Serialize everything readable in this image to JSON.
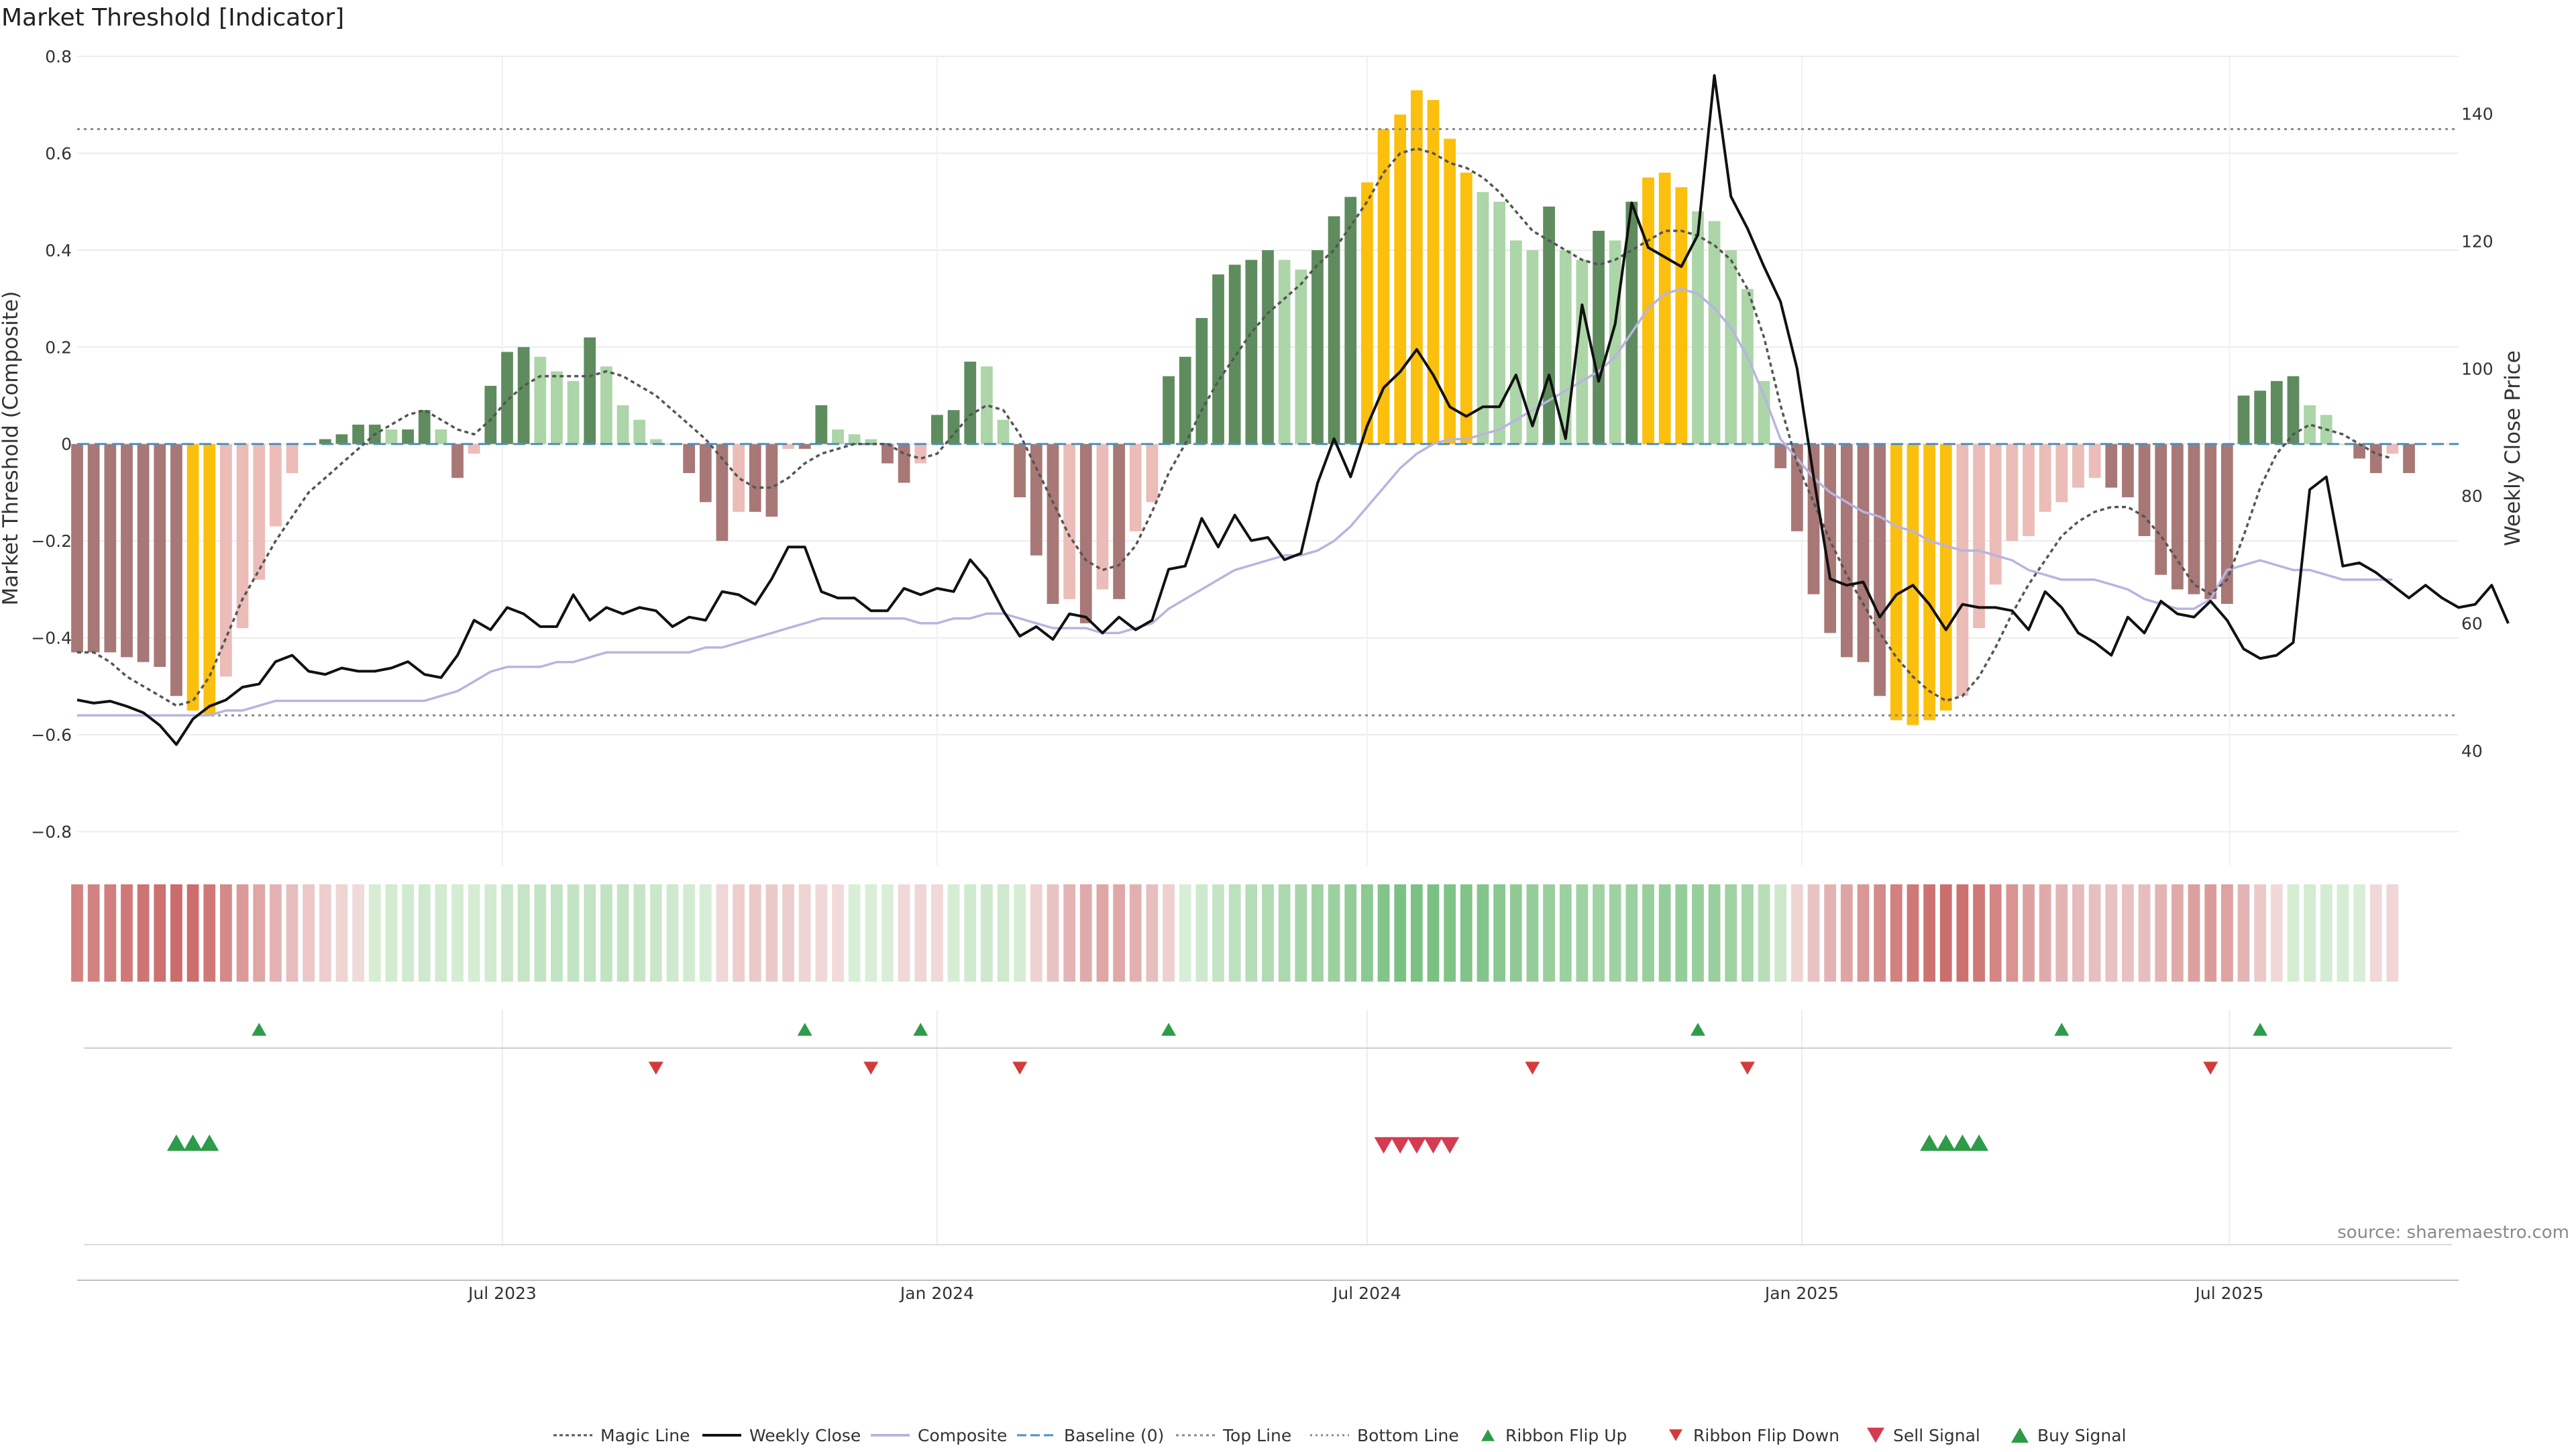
{
  "chart_data": {
    "type": "bar",
    "title": "Market Threshold [Indicator]",
    "ylabel_left": "Market Threshold (Composite)",
    "ylabel_right": "Weekly Close Price",
    "ylim_left": [
      -0.87,
      0.8
    ],
    "ylim_right": [
      22,
      149
    ],
    "yticks_left": [
      "0.8",
      "0.6",
      "0.4",
      "0.2",
      "0",
      "−0.2",
      "−0.4",
      "−0.6",
      "−0.8"
    ],
    "yticks_right": [
      "140",
      "120",
      "100",
      "80",
      "60",
      "40"
    ],
    "yticks_left_values": [
      0.8,
      0.6,
      0.4,
      0.2,
      0,
      -0.2,
      -0.4,
      -0.6,
      -0.8
    ],
    "yticks_right_values": [
      140,
      120,
      100,
      80,
      60,
      40
    ],
    "x_start": "2023-01-02",
    "x_step_days": 7,
    "x_end": "2025-10-06",
    "xticks": [
      {
        "label": "Jul 2023",
        "date": "2023-07-01"
      },
      {
        "label": "Jan 2024",
        "date": "2024-01-01"
      },
      {
        "label": "Jul 2024",
        "date": "2024-07-01"
      },
      {
        "label": "Jan 2025",
        "date": "2025-01-01"
      },
      {
        "label": "Jul 2025",
        "date": "2025-07-01"
      }
    ],
    "top_line": 0.65,
    "bottom_line": -0.56,
    "baseline": 0,
    "composite": [
      -0.43,
      -0.43,
      -0.43,
      -0.44,
      -0.45,
      -0.46,
      -0.52,
      -0.55,
      -0.56,
      -0.48,
      -0.38,
      -0.28,
      -0.17,
      -0.06,
      0.0,
      0.01,
      0.02,
      0.04,
      0.04,
      0.03,
      0.03,
      0.07,
      0.03,
      -0.07,
      -0.02,
      0.12,
      0.19,
      0.2,
      0.18,
      0.15,
      0.13,
      0.22,
      0.16,
      0.08,
      0.05,
      0.01,
      0.0,
      -0.06,
      -0.12,
      -0.2,
      -0.14,
      -0.14,
      -0.15,
      -0.01,
      -0.01,
      0.08,
      0.03,
      0.02,
      0.01,
      -0.04,
      -0.08,
      -0.04,
      0.06,
      0.07,
      0.17,
      0.16,
      0.05,
      -0.11,
      -0.23,
      -0.33,
      -0.32,
      -0.37,
      -0.3,
      -0.32,
      -0.18,
      -0.12,
      0.14,
      0.18,
      0.26,
      0.35,
      0.37,
      0.38,
      0.4,
      0.38,
      0.36,
      0.4,
      0.47,
      0.51,
      0.54,
      0.65,
      0.68,
      0.73,
      0.71,
      0.63,
      0.56,
      0.52,
      0.5,
      0.42,
      0.4,
      0.49,
      0.4,
      0.38,
      0.44,
      0.42,
      0.5,
      0.55,
      0.56,
      0.53,
      0.48,
      0.46,
      0.4,
      0.32,
      0.13,
      -0.05,
      -0.18,
      -0.31,
      -0.39,
      -0.44,
      -0.45,
      -0.52,
      -0.57,
      -0.58,
      -0.57,
      -0.55,
      -0.52,
      -0.38,
      -0.29,
      -0.2,
      -0.19,
      -0.14,
      -0.12,
      -0.09,
      -0.07,
      -0.09,
      -0.11,
      -0.19,
      -0.27,
      -0.3,
      -0.31,
      -0.32,
      -0.33,
      0.1,
      0.11,
      0.13,
      0.14,
      0.08,
      0.06,
      0.0,
      -0.03,
      -0.06,
      -0.02,
      -0.06
    ],
    "composite_line": [
      -0.56,
      -0.56,
      -0.56,
      -0.56,
      -0.56,
      -0.56,
      -0.56,
      -0.56,
      -0.56,
      -0.55,
      -0.55,
      -0.54,
      -0.53,
      -0.53,
      -0.53,
      -0.53,
      -0.53,
      -0.53,
      -0.53,
      -0.53,
      -0.53,
      -0.53,
      -0.52,
      -0.51,
      -0.49,
      -0.47,
      -0.46,
      -0.46,
      -0.46,
      -0.45,
      -0.45,
      -0.44,
      -0.43,
      -0.43,
      -0.43,
      -0.43,
      -0.43,
      -0.43,
      -0.42,
      -0.42,
      -0.41,
      -0.4,
      -0.39,
      -0.38,
      -0.37,
      -0.36,
      -0.36,
      -0.36,
      -0.36,
      -0.36,
      -0.36,
      -0.37,
      -0.37,
      -0.36,
      -0.36,
      -0.35,
      -0.35,
      -0.36,
      -0.37,
      -0.38,
      -0.38,
      -0.38,
      -0.39,
      -0.39,
      -0.38,
      -0.37,
      -0.34,
      -0.32,
      -0.3,
      -0.28,
      -0.26,
      -0.25,
      -0.24,
      -0.23,
      -0.23,
      -0.22,
      -0.2,
      -0.17,
      -0.13,
      -0.09,
      -0.05,
      -0.02,
      0.0,
      0.01,
      0.01,
      0.02,
      0.03,
      0.05,
      0.07,
      0.09,
      0.11,
      0.13,
      0.15,
      0.18,
      0.23,
      0.28,
      0.31,
      0.32,
      0.31,
      0.28,
      0.24,
      0.18,
      0.1,
      0.01,
      -0.03,
      -0.07,
      -0.1,
      -0.12,
      -0.14,
      -0.15,
      -0.17,
      -0.18,
      -0.2,
      -0.21,
      -0.22,
      -0.22,
      -0.23,
      -0.24,
      -0.26,
      -0.27,
      -0.28,
      -0.28,
      -0.28,
      -0.29,
      -0.3,
      -0.32,
      -0.33,
      -0.34,
      -0.34,
      -0.32,
      -0.26,
      -0.25,
      -0.24,
      -0.25,
      -0.26,
      -0.26,
      -0.27,
      -0.28,
      -0.28,
      -0.28,
      -0.28
    ],
    "magic_line": [
      -0.43,
      -0.43,
      -0.45,
      -0.48,
      -0.5,
      -0.52,
      -0.54,
      -0.53,
      -0.48,
      -0.4,
      -0.32,
      -0.26,
      -0.2,
      -0.15,
      -0.1,
      -0.07,
      -0.04,
      -0.01,
      0.02,
      0.04,
      0.06,
      0.07,
      0.05,
      0.03,
      0.02,
      0.05,
      0.09,
      0.12,
      0.14,
      0.14,
      0.14,
      0.14,
      0.15,
      0.14,
      0.12,
      0.1,
      0.07,
      0.04,
      0.01,
      -0.03,
      -0.07,
      -0.09,
      -0.09,
      -0.07,
      -0.04,
      -0.02,
      -0.01,
      0.0,
      0.0,
      0.0,
      -0.02,
      -0.03,
      -0.02,
      0.02,
      0.06,
      0.08,
      0.07,
      0.02,
      -0.05,
      -0.12,
      -0.19,
      -0.24,
      -0.26,
      -0.25,
      -0.21,
      -0.14,
      -0.06,
      0.0,
      0.07,
      0.13,
      0.18,
      0.23,
      0.27,
      0.3,
      0.33,
      0.37,
      0.4,
      0.45,
      0.5,
      0.56,
      0.6,
      0.61,
      0.6,
      0.58,
      0.57,
      0.55,
      0.52,
      0.48,
      0.44,
      0.42,
      0.4,
      0.38,
      0.37,
      0.38,
      0.4,
      0.42,
      0.44,
      0.44,
      0.43,
      0.41,
      0.38,
      0.32,
      0.22,
      0.08,
      -0.04,
      -0.12,
      -0.2,
      -0.27,
      -0.33,
      -0.39,
      -0.44,
      -0.48,
      -0.51,
      -0.53,
      -0.52,
      -0.48,
      -0.42,
      -0.35,
      -0.29,
      -0.24,
      -0.19,
      -0.16,
      -0.14,
      -0.13,
      -0.13,
      -0.15,
      -0.19,
      -0.24,
      -0.29,
      -0.31,
      -0.28,
      -0.19,
      -0.09,
      -0.02,
      0.02,
      0.04,
      0.03,
      0.02,
      0.0,
      -0.02,
      -0.03
    ],
    "weekly_close": [
      48,
      47.5,
      47.8,
      47,
      46,
      44,
      41,
      45,
      47,
      48,
      50,
      50.5,
      54,
      55,
      52.5,
      52,
      53,
      52.5,
      52.5,
      53,
      54,
      52,
      51.5,
      55,
      60.5,
      59,
      62.5,
      61.5,
      59.5,
      59.5,
      64.5,
      60.5,
      62.5,
      61.5,
      62.5,
      62,
      59.5,
      61,
      60.5,
      65,
      64.5,
      63,
      67,
      72,
      72,
      65,
      64,
      64,
      62,
      62,
      65.5,
      64.5,
      65.5,
      65,
      70,
      67,
      62,
      58,
      59.5,
      57.5,
      61.5,
      61,
      58.5,
      61,
      59,
      60.5,
      68.5,
      69,
      76.5,
      72,
      77,
      73,
      73.5,
      70,
      71,
      82,
      89,
      83,
      91,
      97,
      99.5,
      103,
      99,
      94,
      92.5,
      94,
      94,
      99,
      91,
      99,
      89,
      110,
      98,
      107,
      126,
      119,
      117.5,
      116,
      121,
      146,
      127,
      122,
      116,
      110.5,
      100,
      83,
      67,
      66,
      66.5,
      61,
      64.5,
      66,
      63,
      59,
      63,
      62.5,
      62.5,
      62,
      59,
      65,
      62.5,
      58.5,
      57,
      55,
      61,
      58.5,
      63.5,
      61.5,
      61,
      63.5,
      60.5,
      56,
      54.5,
      55,
      57,
      81,
      83,
      69,
      69.5,
      68,
      66,
      64,
      66,
      64,
      62.5,
      63,
      66,
      60
    ],
    "ribbon_flip_up_idx": [
      11,
      44,
      51,
      66,
      98,
      120,
      132
    ],
    "ribbon_flip_down_idx": [
      35,
      48,
      57,
      88,
      101,
      129
    ],
    "buy_signal_idx": [
      6,
      7,
      8,
      112,
      113,
      114,
      115
    ],
    "sell_signal_idx": [
      79,
      80,
      81,
      82,
      83
    ],
    "legend": [
      "Magic Line",
      "Weekly Close",
      "Composite",
      "Baseline (0)",
      "Top Line",
      "Bottom Line",
      "Ribbon Flip Up",
      "Ribbon Flip Down",
      "Sell Signal",
      "Buy Signal"
    ],
    "source_label": "source: sharemaestro.com",
    "grid": true,
    "legend_position": "bottom-center"
  },
  "colors": {
    "pos_dark": "#5e8c5e",
    "pos_light": "#acd5a8",
    "neg_dark": "#a87876",
    "neg_light": "#ebbcb8",
    "extreme": "#fbbf0d",
    "magic_line": "#555555",
    "weekly_close": "#111111",
    "composite_line": "#b8b4e0",
    "baseline": "#4f8fbd",
    "threshold_lines": "#888888",
    "flip_up": "#2d9b48",
    "flip_down": "#d43a3a",
    "signal_up": "#2d9b48",
    "signal_down": "#d63b50"
  }
}
